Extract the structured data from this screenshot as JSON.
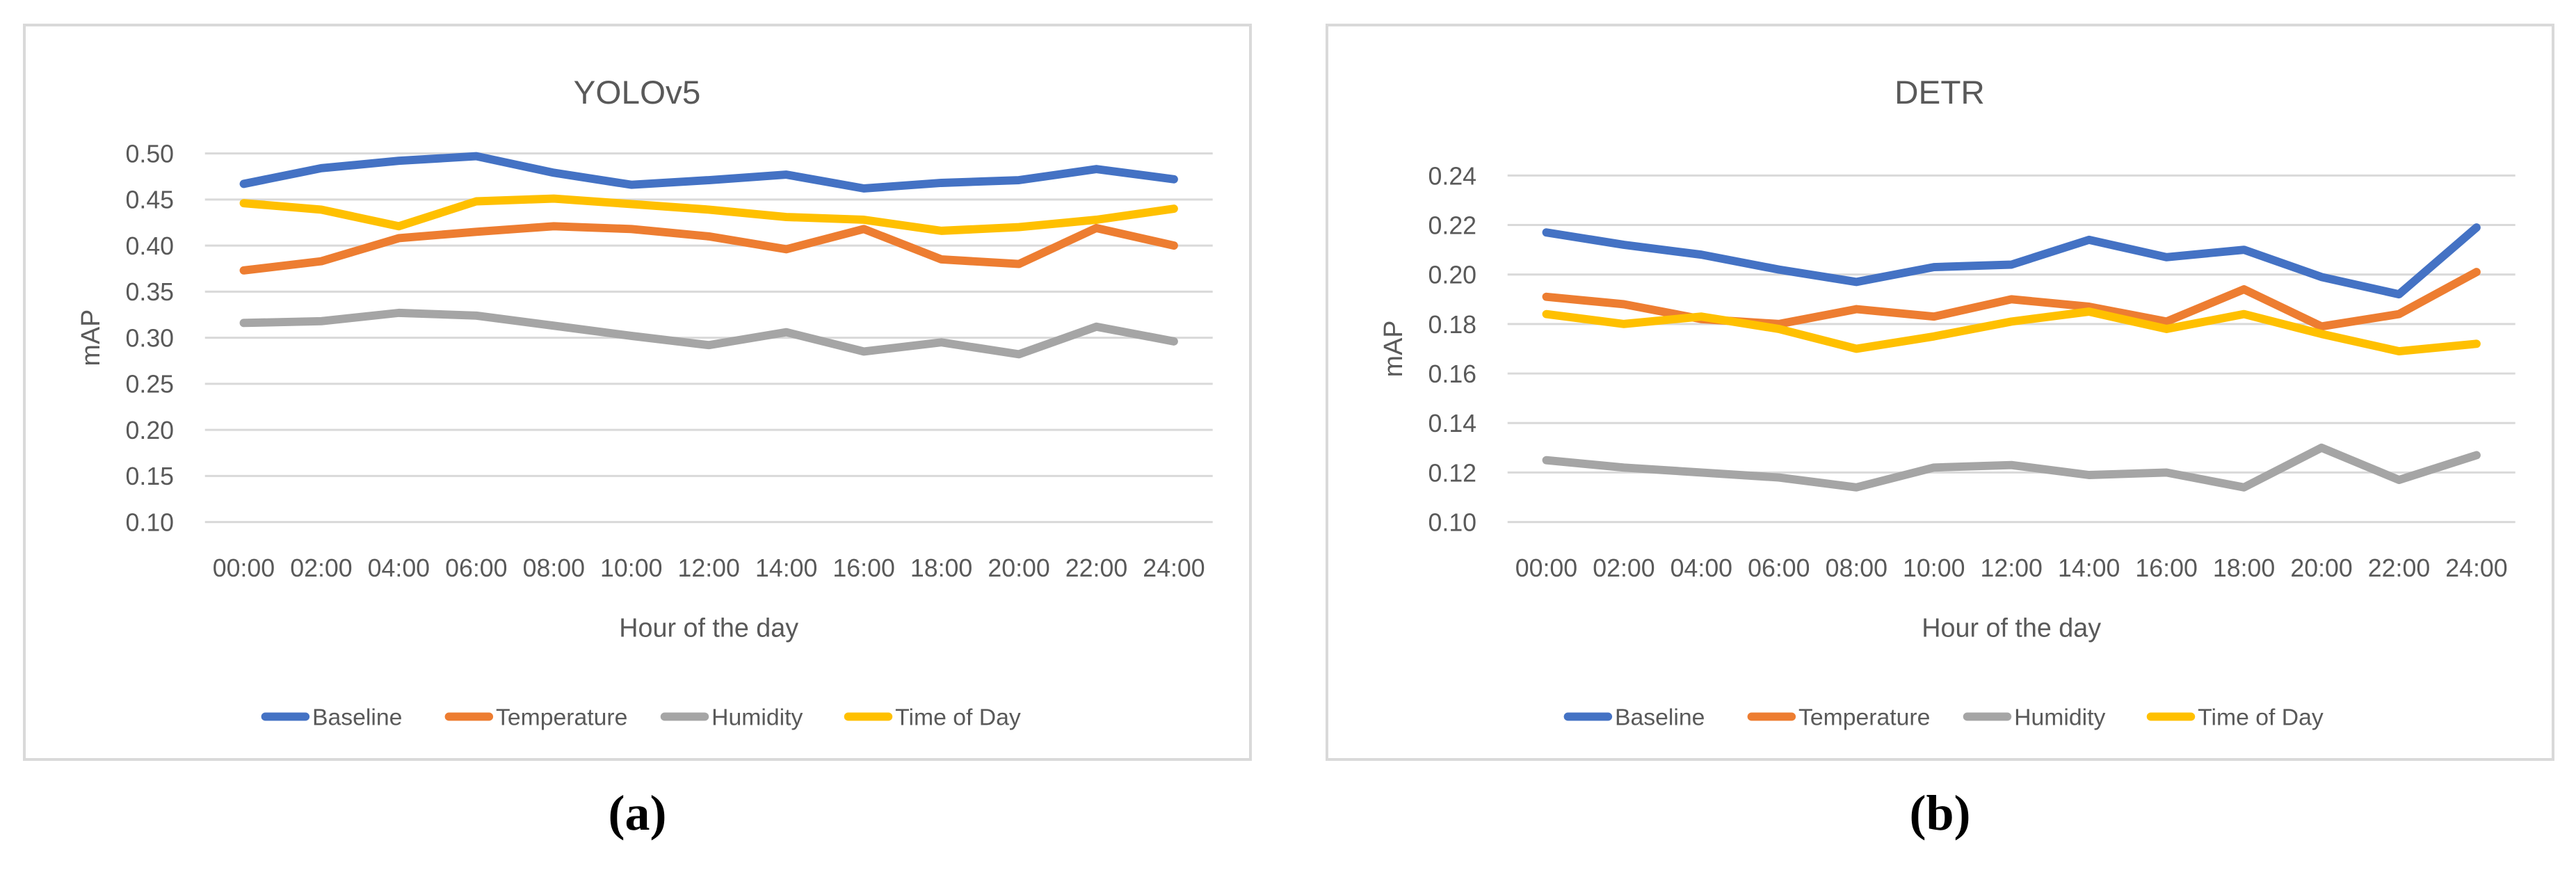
{
  "styles": {
    "background": "#ffffff",
    "panel_border": "#d9d9d9",
    "gridline": "#d9d9d9",
    "text": "#595959"
  },
  "captions": {
    "a": "(a)",
    "b": "(b)"
  },
  "chart_data": [
    {
      "type": "line",
      "title": "YOLOv5",
      "xlabel": "Hour of the day",
      "ylabel": "mAP",
      "caption": "(a)",
      "ylim": [
        0.1,
        0.5
      ],
      "ytick_step": 0.05,
      "ytick_labels": [
        "0.50",
        "0.45",
        "0.40",
        "0.35",
        "0.30",
        "0.25",
        "0.20",
        "0.15",
        "0.10"
      ],
      "grid": true,
      "legend_position": "bottom",
      "categories": [
        "00:00",
        "02:00",
        "04:00",
        "06:00",
        "08:00",
        "10:00",
        "12:00",
        "14:00",
        "16:00",
        "18:00",
        "20:00",
        "22:00",
        "24:00"
      ],
      "series": [
        {
          "name": "Baseline",
          "color": "#4472C4",
          "values": [
            0.467,
            0.484,
            0.492,
            0.497,
            0.479,
            0.466,
            0.471,
            0.477,
            0.462,
            0.468,
            0.471,
            0.483,
            0.472
          ]
        },
        {
          "name": "Temperature",
          "color": "#ED7D31",
          "values": [
            0.373,
            0.383,
            0.408,
            0.415,
            0.421,
            0.418,
            0.41,
            0.396,
            0.418,
            0.385,
            0.38,
            0.419,
            0.4
          ]
        },
        {
          "name": "Humidity",
          "color": "#A5A5A5",
          "values": [
            0.316,
            0.318,
            0.327,
            0.324,
            0.313,
            0.302,
            0.292,
            0.306,
            0.285,
            0.295,
            0.282,
            0.312,
            0.296
          ]
        },
        {
          "name": "Time of Day",
          "color": "#FFC000",
          "values": [
            0.446,
            0.439,
            0.421,
            0.448,
            0.451,
            0.445,
            0.439,
            0.431,
            0.428,
            0.416,
            0.42,
            0.428,
            0.44
          ]
        }
      ]
    },
    {
      "type": "line",
      "title": "DETR",
      "xlabel": "Hour of the day",
      "ylabel": "mAP",
      "caption": "(b)",
      "ylim": [
        0.1,
        0.24
      ],
      "ytick_step": 0.02,
      "ytick_labels": [
        "0.24",
        "0.22",
        "0.20",
        "0.18",
        "0.16",
        "0.14",
        "0.12",
        "0.10"
      ],
      "grid": true,
      "legend_position": "bottom",
      "categories": [
        "00:00",
        "02:00",
        "04:00",
        "06:00",
        "08:00",
        "10:00",
        "12:00",
        "14:00",
        "16:00",
        "18:00",
        "20:00",
        "22:00",
        "24:00"
      ],
      "series": [
        {
          "name": "Baseline",
          "color": "#4472C4",
          "values": [
            0.217,
            0.212,
            0.208,
            0.202,
            0.197,
            0.203,
            0.204,
            0.214,
            0.207,
            0.21,
            0.199,
            0.192,
            0.219
          ]
        },
        {
          "name": "Temperature",
          "color": "#ED7D31",
          "values": [
            0.191,
            0.188,
            0.182,
            0.18,
            0.186,
            0.183,
            0.19,
            0.187,
            0.181,
            0.194,
            0.179,
            0.184,
            0.201
          ]
        },
        {
          "name": "Humidity",
          "color": "#A5A5A5",
          "values": [
            0.125,
            0.122,
            0.12,
            0.118,
            0.114,
            0.122,
            0.123,
            0.119,
            0.12,
            0.114,
            0.13,
            0.117,
            0.127
          ]
        },
        {
          "name": "Time of Day",
          "color": "#FFC000",
          "values": [
            0.184,
            0.18,
            0.183,
            0.178,
            0.17,
            0.175,
            0.181,
            0.185,
            0.178,
            0.184,
            0.176,
            0.169,
            0.172
          ]
        }
      ]
    }
  ]
}
